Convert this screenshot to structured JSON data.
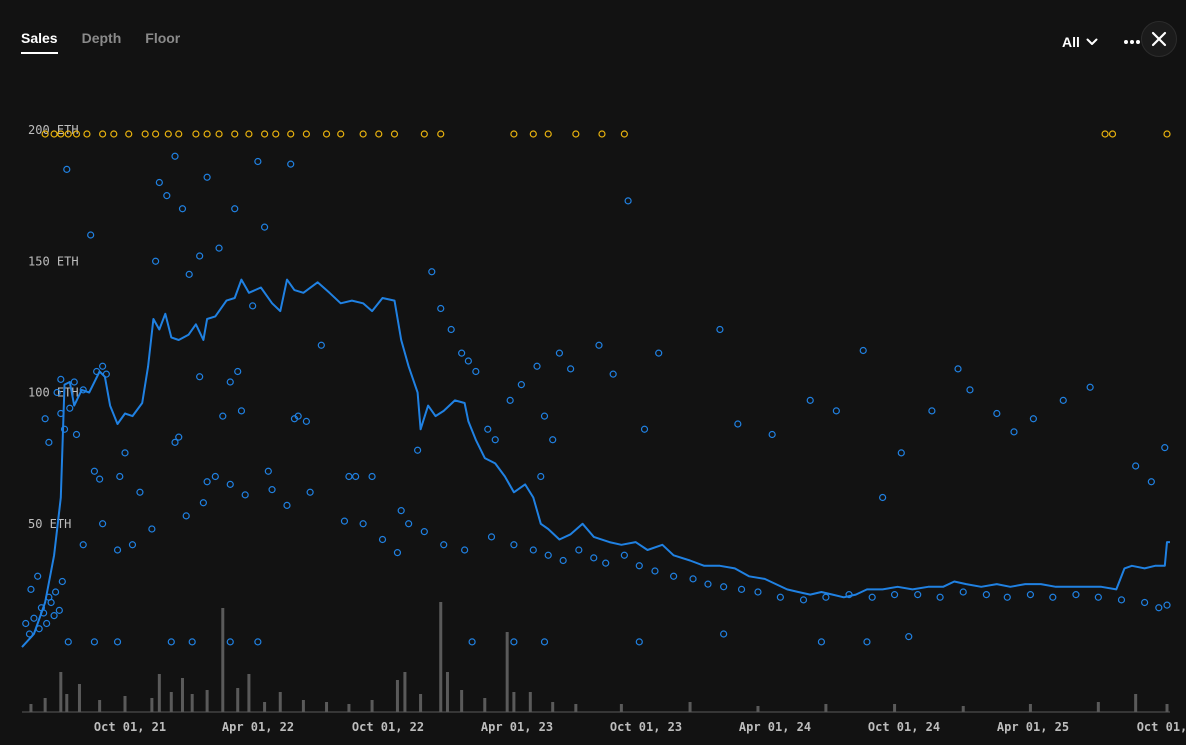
{
  "tabs": [
    {
      "label": "Sales",
      "active": true
    },
    {
      "label": "Depth",
      "active": false
    },
    {
      "label": "Floor",
      "active": false
    }
  ],
  "range_selector": {
    "label": "All",
    "icon": "chevron-down-icon"
  },
  "toolbar": {
    "more_icon": "more-horizontal-icon",
    "close_icon": "close-icon"
  },
  "colors": {
    "background": "#121212",
    "sales": "#2081e2",
    "floor_line": "#2081e2",
    "capped": "#e8b20e",
    "volume": "#5a5a5a"
  },
  "chart_data": {
    "type": "scatter",
    "y_unit": "ETH",
    "ylim": [
      0,
      200
    ],
    "yticks": [
      "200 ETH",
      "150 ETH",
      "100 ETH",
      "50 ETH"
    ],
    "xticks": [
      "Oct 01, 21",
      "Apr 01, 22",
      "Oct 01, 22",
      "Apr 01, 23",
      "Oct 01, 23",
      "Apr 01, 24",
      "Oct 01, 24",
      "Apr 01, 25",
      "Oct 01,"
    ],
    "xlim": [
      "2021-07-20",
      "2025-10-05"
    ],
    "grid": false,
    "floor_line": [
      [
        "2021-07-20",
        3
      ],
      [
        "2021-08-05",
        8
      ],
      [
        "2021-08-20",
        20
      ],
      [
        "2021-09-01",
        38
      ],
      [
        "2021-09-10",
        60
      ],
      [
        "2021-09-15",
        103
      ],
      [
        "2021-09-22",
        104
      ],
      [
        "2021-09-28",
        95
      ],
      [
        "2021-10-08",
        101
      ],
      [
        "2021-10-18",
        100
      ],
      [
        "2021-11-01",
        108
      ],
      [
        "2021-11-08",
        106
      ],
      [
        "2021-11-15",
        95
      ],
      [
        "2021-11-25",
        88
      ],
      [
        "2021-12-05",
        92
      ],
      [
        "2021-12-15",
        91
      ],
      [
        "2021-12-28",
        96
      ],
      [
        "2022-01-05",
        110
      ],
      [
        "2022-01-12",
        128
      ],
      [
        "2022-01-20",
        124
      ],
      [
        "2022-01-28",
        130
      ],
      [
        "2022-02-05",
        121
      ],
      [
        "2022-02-15",
        120
      ],
      [
        "2022-02-28",
        122
      ],
      [
        "2022-03-10",
        126
      ],
      [
        "2022-03-20",
        120
      ],
      [
        "2022-03-25",
        128
      ],
      [
        "2022-04-05",
        129
      ],
      [
        "2022-04-20",
        135
      ],
      [
        "2022-05-01",
        136
      ],
      [
        "2022-05-10",
        143
      ],
      [
        "2022-05-20",
        138
      ],
      [
        "2022-06-05",
        140
      ],
      [
        "2022-06-20",
        134
      ],
      [
        "2022-07-01",
        131
      ],
      [
        "2022-07-10",
        143
      ],
      [
        "2022-07-20",
        139
      ],
      [
        "2022-08-01",
        138
      ],
      [
        "2022-08-20",
        142
      ],
      [
        "2022-09-05",
        138
      ],
      [
        "2022-09-20",
        134
      ],
      [
        "2022-10-05",
        135
      ],
      [
        "2022-10-20",
        134
      ],
      [
        "2022-11-01",
        131
      ],
      [
        "2022-11-15",
        136
      ],
      [
        "2022-12-01",
        135
      ],
      [
        "2022-12-10",
        120
      ],
      [
        "2022-12-20",
        110
      ],
      [
        "2023-01-01",
        100
      ],
      [
        "2023-01-05",
        86
      ],
      [
        "2023-01-15",
        95
      ],
      [
        "2023-01-25",
        91
      ],
      [
        "2023-02-05",
        93
      ],
      [
        "2023-02-20",
        97
      ],
      [
        "2023-03-05",
        96
      ],
      [
        "2023-03-10",
        89
      ],
      [
        "2023-03-20",
        82
      ],
      [
        "2023-04-01",
        75
      ],
      [
        "2023-04-15",
        73
      ],
      [
        "2023-04-28",
        68
      ],
      [
        "2023-05-10",
        62
      ],
      [
        "2023-05-25",
        65
      ],
      [
        "2023-06-05",
        60
      ],
      [
        "2023-06-15",
        50
      ],
      [
        "2023-06-25",
        48
      ],
      [
        "2023-07-10",
        44
      ],
      [
        "2023-07-25",
        46
      ],
      [
        "2023-08-10",
        50
      ],
      [
        "2023-08-25",
        45
      ],
      [
        "2023-09-15",
        43
      ],
      [
        "2023-10-01",
        42
      ],
      [
        "2023-10-20",
        43
      ],
      [
        "2023-11-05",
        40
      ],
      [
        "2023-11-25",
        42
      ],
      [
        "2023-12-10",
        38
      ],
      [
        "2024-01-01",
        36
      ],
      [
        "2024-01-20",
        34
      ],
      [
        "2024-02-10",
        34
      ],
      [
        "2024-03-01",
        33
      ],
      [
        "2024-03-20",
        30
      ],
      [
        "2024-04-10",
        29
      ],
      [
        "2024-04-25",
        27
      ],
      [
        "2024-05-10",
        25
      ],
      [
        "2024-05-25",
        24
      ],
      [
        "2024-06-10",
        23
      ],
      [
        "2024-06-25",
        24
      ],
      [
        "2024-07-10",
        23
      ],
      [
        "2024-07-25",
        22
      ],
      [
        "2024-08-10",
        23
      ],
      [
        "2024-08-25",
        25
      ],
      [
        "2024-09-15",
        25
      ],
      [
        "2024-10-05",
        26
      ],
      [
        "2024-10-25",
        25
      ],
      [
        "2024-11-15",
        26
      ],
      [
        "2024-12-05",
        26
      ],
      [
        "2024-12-20",
        28
      ],
      [
        "2025-01-05",
        27
      ],
      [
        "2025-01-25",
        26
      ],
      [
        "2025-02-15",
        27
      ],
      [
        "2025-03-05",
        26
      ],
      [
        "2025-03-25",
        27
      ],
      [
        "2025-04-15",
        27
      ],
      [
        "2025-05-05",
        26
      ],
      [
        "2025-05-25",
        26
      ],
      [
        "2025-06-15",
        26
      ],
      [
        "2025-07-05",
        26
      ],
      [
        "2025-07-25",
        25
      ],
      [
        "2025-08-05",
        33
      ],
      [
        "2025-08-15",
        34
      ],
      [
        "2025-09-01",
        33
      ],
      [
        "2025-09-15",
        34
      ],
      [
        "2025-09-28",
        34
      ],
      [
        "2025-10-01",
        43
      ],
      [
        "2025-10-05",
        43
      ]
    ],
    "sales": [
      [
        "2021-09-18",
        185
      ],
      [
        "2021-10-20",
        160
      ],
      [
        "2021-10-28",
        108
      ],
      [
        "2021-09-28",
        104
      ],
      [
        "2021-10-10",
        101
      ],
      [
        "2021-09-05",
        100
      ],
      [
        "2021-09-10",
        105
      ],
      [
        "2021-11-05",
        110
      ],
      [
        "2021-11-10",
        107
      ],
      [
        "2021-09-10",
        92
      ],
      [
        "2021-09-15",
        86
      ],
      [
        "2021-09-22",
        94
      ],
      [
        "2021-10-01",
        84
      ],
      [
        "2021-08-20",
        90
      ],
      [
        "2021-08-25",
        81
      ],
      [
        "2021-10-25",
        70
      ],
      [
        "2021-11-01",
        67
      ],
      [
        "2021-11-28",
        68
      ],
      [
        "2021-12-05",
        77
      ],
      [
        "2021-12-25",
        62
      ],
      [
        "2022-01-15",
        150
      ],
      [
        "2022-01-20",
        180
      ],
      [
        "2022-01-30",
        175
      ],
      [
        "2022-02-10",
        190
      ],
      [
        "2022-02-20",
        170
      ],
      [
        "2022-03-01",
        145
      ],
      [
        "2022-03-15",
        152
      ],
      [
        "2022-03-25",
        182
      ],
      [
        "2022-04-10",
        155
      ],
      [
        "2022-05-01",
        170
      ],
      [
        "2022-06-01",
        188
      ],
      [
        "2022-07-15",
        187
      ],
      [
        "2022-06-10",
        163
      ],
      [
        "2022-05-25",
        133
      ],
      [
        "2022-05-05",
        108
      ],
      [
        "2022-04-25",
        104
      ],
      [
        "2022-03-15",
        106
      ],
      [
        "2022-02-10",
        81
      ],
      [
        "2022-02-15",
        83
      ],
      [
        "2022-03-25",
        66
      ],
      [
        "2022-04-05",
        68
      ],
      [
        "2022-04-15",
        91
      ],
      [
        "2022-05-10",
        93
      ],
      [
        "2022-06-15",
        70
      ],
      [
        "2022-07-20",
        90
      ],
      [
        "2022-07-25",
        91
      ],
      [
        "2022-08-05",
        89
      ],
      [
        "2022-08-25",
        118
      ],
      [
        "2022-10-01",
        68
      ],
      [
        "2022-10-10",
        68
      ],
      [
        "2022-11-01",
        68
      ],
      [
        "2022-12-10",
        55
      ],
      [
        "2022-12-20",
        50
      ],
      [
        "2023-01-01",
        78
      ],
      [
        "2023-01-20",
        146
      ],
      [
        "2023-02-01",
        132
      ],
      [
        "2023-02-15",
        124
      ],
      [
        "2023-03-01",
        115
      ],
      [
        "2023-03-10",
        112
      ],
      [
        "2023-03-20",
        108
      ],
      [
        "2023-04-05",
        86
      ],
      [
        "2023-04-15",
        82
      ],
      [
        "2023-05-05",
        97
      ],
      [
        "2023-05-20",
        103
      ],
      [
        "2023-06-10",
        110
      ],
      [
        "2023-07-10",
        115
      ],
      [
        "2023-07-25",
        109
      ],
      [
        "2023-06-15",
        68
      ],
      [
        "2023-07-01",
        82
      ],
      [
        "2023-06-20",
        91
      ],
      [
        "2023-09-01",
        118
      ],
      [
        "2023-09-20",
        107
      ],
      [
        "2023-10-10",
        173
      ],
      [
        "2023-11-01",
        86
      ],
      [
        "2023-11-20",
        115
      ],
      [
        "2024-02-10",
        124
      ],
      [
        "2024-03-05",
        88
      ],
      [
        "2024-04-20",
        84
      ],
      [
        "2024-06-10",
        97
      ],
      [
        "2024-07-15",
        93
      ],
      [
        "2024-08-20",
        116
      ],
      [
        "2024-09-15",
        60
      ],
      [
        "2024-10-10",
        77
      ],
      [
        "2024-11-20",
        93
      ],
      [
        "2024-12-25",
        109
      ],
      [
        "2025-01-10",
        101
      ],
      [
        "2025-02-15",
        92
      ],
      [
        "2025-03-10",
        85
      ],
      [
        "2025-04-05",
        90
      ],
      [
        "2025-05-15",
        97
      ],
      [
        "2025-06-20",
        102
      ],
      [
        "2025-08-20",
        72
      ],
      [
        "2025-09-10",
        66
      ],
      [
        "2025-09-28",
        79
      ],
      [
        "2021-10-10",
        42
      ],
      [
        "2021-11-05",
        50
      ],
      [
        "2021-11-25",
        40
      ],
      [
        "2021-12-15",
        42
      ],
      [
        "2022-01-10",
        48
      ],
      [
        "2022-02-25",
        53
      ],
      [
        "2022-03-20",
        58
      ],
      [
        "2022-04-25",
        65
      ],
      [
        "2022-05-15",
        61
      ],
      [
        "2022-06-20",
        63
      ],
      [
        "2022-07-10",
        57
      ],
      [
        "2022-08-10",
        62
      ],
      [
        "2022-09-25",
        51
      ],
      [
        "2022-10-20",
        50
      ],
      [
        "2022-11-15",
        44
      ],
      [
        "2022-12-05",
        39
      ],
      [
        "2023-01-10",
        47
      ],
      [
        "2023-02-05",
        42
      ],
      [
        "2023-03-05",
        40
      ],
      [
        "2023-04-10",
        45
      ],
      [
        "2023-05-10",
        42
      ],
      [
        "2023-06-05",
        40
      ],
      [
        "2023-06-25",
        38
      ],
      [
        "2023-07-15",
        36
      ],
      [
        "2023-08-05",
        40
      ],
      [
        "2023-08-25",
        37
      ],
      [
        "2023-09-10",
        35
      ],
      [
        "2023-10-05",
        38
      ],
      [
        "2023-10-25",
        34
      ],
      [
        "2023-11-15",
        32
      ],
      [
        "2023-12-10",
        30
      ],
      [
        "2024-01-05",
        29
      ],
      [
        "2024-01-25",
        27
      ],
      [
        "2024-02-15",
        26
      ],
      [
        "2024-03-10",
        25
      ],
      [
        "2024-04-01",
        24
      ],
      [
        "2024-05-01",
        22
      ],
      [
        "2024-06-01",
        21
      ],
      [
        "2024-07-01",
        22
      ],
      [
        "2024-08-01",
        23
      ],
      [
        "2024-09-01",
        22
      ],
      [
        "2024-10-01",
        23
      ],
      [
        "2024-11-01",
        23
      ],
      [
        "2024-12-01",
        22
      ],
      [
        "2025-01-01",
        24
      ],
      [
        "2025-02-01",
        23
      ],
      [
        "2025-03-01",
        22
      ],
      [
        "2025-04-01",
        23
      ],
      [
        "2025-05-01",
        22
      ],
      [
        "2025-06-01",
        23
      ],
      [
        "2025-07-01",
        22
      ],
      [
        "2025-08-01",
        21
      ],
      [
        "2025-09-01",
        20
      ],
      [
        "2025-09-20",
        18
      ],
      [
        "2025-10-01",
        19
      ],
      [
        "2021-09-20",
        5
      ],
      [
        "2021-10-25",
        5
      ],
      [
        "2021-11-25",
        5
      ],
      [
        "2022-02-05",
        5
      ],
      [
        "2022-03-05",
        5
      ],
      [
        "2022-04-25",
        5
      ],
      [
        "2022-06-01",
        5
      ],
      [
        "2023-03-15",
        5
      ],
      [
        "2023-05-10",
        5
      ],
      [
        "2023-06-20",
        5
      ],
      [
        "2023-10-25",
        5
      ],
      [
        "2024-02-15",
        8
      ],
      [
        "2024-06-25",
        5
      ],
      [
        "2024-08-25",
        5
      ],
      [
        "2024-10-20",
        7
      ],
      [
        "2021-08-01",
        25
      ],
      [
        "2021-08-10",
        30
      ],
      [
        "2021-08-15",
        18
      ],
      [
        "2021-08-25",
        22
      ],
      [
        "2021-09-01",
        15
      ],
      [
        "2021-07-25",
        12
      ],
      [
        "2021-07-30",
        8
      ],
      [
        "2021-08-05",
        14
      ],
      [
        "2021-08-12",
        10
      ],
      [
        "2021-08-18",
        16
      ],
      [
        "2021-08-22",
        12
      ],
      [
        "2021-08-28",
        20
      ],
      [
        "2021-09-03",
        24
      ],
      [
        "2021-09-08",
        17
      ],
      [
        "2021-09-12",
        28
      ]
    ],
    "capped_sales_at_200": [
      "2021-08-20",
      "2021-09-01",
      "2021-09-10",
      "2021-09-20",
      "2021-10-01",
      "2021-10-15",
      "2021-11-05",
      "2021-11-20",
      "2021-12-10",
      "2022-01-01",
      "2022-01-15",
      "2022-02-01",
      "2022-02-15",
      "2022-03-10",
      "2022-03-25",
      "2022-04-10",
      "2022-05-01",
      "2022-05-20",
      "2022-06-10",
      "2022-06-25",
      "2022-07-15",
      "2022-08-05",
      "2022-09-01",
      "2022-09-20",
      "2022-10-20",
      "2022-11-10",
      "2022-12-01",
      "2023-01-10",
      "2023-02-01",
      "2023-05-10",
      "2023-06-05",
      "2023-06-25",
      "2023-08-01",
      "2023-09-05",
      "2023-10-05",
      "2025-07-10",
      "2025-07-20",
      "2025-10-01"
    ],
    "volume": [
      [
        "2021-08-01",
        8
      ],
      [
        "2021-08-20",
        14
      ],
      [
        "2021-09-10",
        40
      ],
      [
        "2021-09-18",
        18
      ],
      [
        "2021-10-05",
        28
      ],
      [
        "2021-11-01",
        12
      ],
      [
        "2021-12-05",
        16
      ],
      [
        "2022-01-10",
        14
      ],
      [
        "2022-01-20",
        38
      ],
      [
        "2022-02-05",
        20
      ],
      [
        "2022-02-20",
        34
      ],
      [
        "2022-03-05",
        18
      ],
      [
        "2022-03-25",
        22
      ],
      [
        "2022-04-15",
        104
      ],
      [
        "2022-05-05",
        24
      ],
      [
        "2022-05-20",
        38
      ],
      [
        "2022-06-10",
        10
      ],
      [
        "2022-07-01",
        20
      ],
      [
        "2022-08-01",
        12
      ],
      [
        "2022-09-01",
        10
      ],
      [
        "2022-10-01",
        8
      ],
      [
        "2022-11-01",
        12
      ],
      [
        "2022-12-05",
        32
      ],
      [
        "2022-12-15",
        40
      ],
      [
        "2023-01-05",
        18
      ],
      [
        "2023-02-01",
        110
      ],
      [
        "2023-02-10",
        40
      ],
      [
        "2023-03-01",
        22
      ],
      [
        "2023-04-01",
        14
      ],
      [
        "2023-05-01",
        80
      ],
      [
        "2023-05-10",
        20
      ],
      [
        "2023-06-01",
        20
      ],
      [
        "2023-07-01",
        10
      ],
      [
        "2023-08-01",
        8
      ],
      [
        "2023-10-01",
        8
      ],
      [
        "2024-01-01",
        10
      ],
      [
        "2024-04-01",
        6
      ],
      [
        "2024-07-01",
        8
      ],
      [
        "2024-10-01",
        8
      ],
      [
        "2025-01-01",
        6
      ],
      [
        "2025-04-01",
        8
      ],
      [
        "2025-07-01",
        10
      ],
      [
        "2025-08-20",
        18
      ],
      [
        "2025-10-01",
        8
      ]
    ]
  }
}
